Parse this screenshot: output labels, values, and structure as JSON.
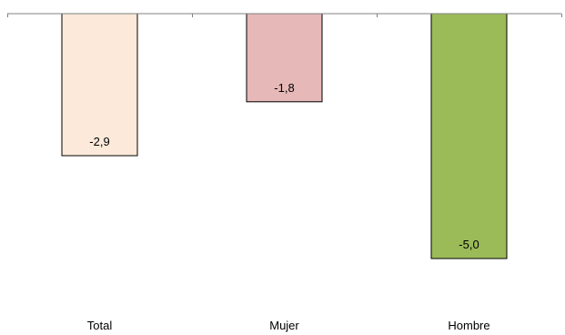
{
  "chart_data": {
    "type": "bar",
    "categories": [
      "Total",
      "Mujer",
      "Hombre"
    ],
    "values": [
      -2.9,
      -1.8,
      -5.0
    ],
    "data_labels": [
      "-2,9",
      "-1,8",
      "-5,0"
    ],
    "bar_colors": [
      "#fde9d9",
      "#e6b8b7",
      "#9bbb59"
    ],
    "ylim": [
      -5.0,
      0
    ],
    "grid": false,
    "legend": "none"
  }
}
